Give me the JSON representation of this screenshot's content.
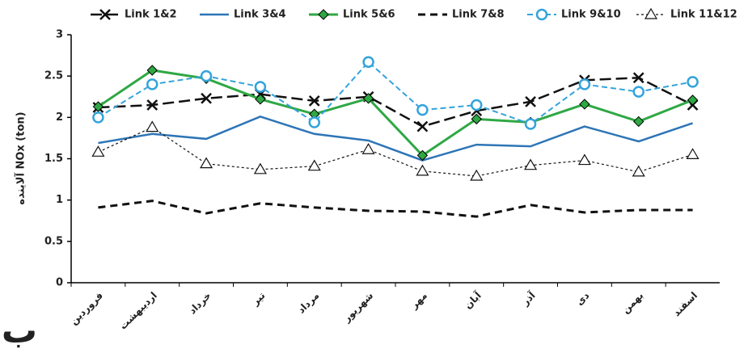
{
  "chart_data": {
    "type": "line",
    "y_label": "آلاینده NOx (ton)",
    "panel_label": "ب",
    "categories": [
      "فروردین",
      "اردیبهشت",
      "خرداد",
      "تیر",
      "مرداد",
      "شهریور",
      "مهر",
      "آبان",
      "آذر",
      "دی",
      "بهمن",
      "اسفند"
    ],
    "ylim": [
      0,
      3
    ],
    "yticks": [
      0,
      0.5,
      1,
      1.5,
      2,
      2.5,
      3
    ],
    "grid": false,
    "series": [
      {
        "name": "Link 1&2",
        "color": "#111111",
        "dash": "14,6",
        "width": 2.5,
        "marker": "x",
        "values": [
          2.12,
          2.15,
          2.23,
          2.28,
          2.2,
          2.25,
          1.89,
          2.08,
          2.19,
          2.45,
          2.48,
          2.15
        ]
      },
      {
        "name": "Link 3&4",
        "color": "#2e75b6",
        "dash": "none",
        "width": 2.5,
        "marker": "none",
        "values": [
          1.69,
          1.8,
          1.74,
          2.01,
          1.8,
          1.72,
          1.48,
          1.67,
          1.65,
          1.89,
          1.71,
          1.93
        ]
      },
      {
        "name": "Link 5&6",
        "color": "#2fa844",
        "dash": "none",
        "width": 3,
        "marker": "diamond",
        "values": [
          2.13,
          2.57,
          2.47,
          2.22,
          2.04,
          2.23,
          1.54,
          1.98,
          1.94,
          2.16,
          1.95,
          2.21
        ]
      },
      {
        "name": "Link 7&8",
        "color": "#111111",
        "dash": "9,6",
        "width": 3,
        "marker": "none",
        "values": [
          0.91,
          0.99,
          0.84,
          0.96,
          0.91,
          0.87,
          0.86,
          0.8,
          0.94,
          0.85,
          0.88,
          0.88
        ]
      },
      {
        "name": "Link 9&10",
        "color": "#33a3dc",
        "dash": "7,4",
        "width": 2,
        "marker": "circle",
        "values": [
          2.0,
          2.4,
          2.5,
          2.37,
          1.94,
          2.67,
          2.09,
          2.15,
          1.92,
          2.4,
          2.31,
          2.43
        ]
      },
      {
        "name": "Link 11&12",
        "color": "#111111",
        "dash": "3,3",
        "width": 1.2,
        "marker": "triangle",
        "values": [
          1.58,
          1.88,
          1.44,
          1.37,
          1.41,
          1.61,
          1.35,
          1.29,
          1.42,
          1.48,
          1.34,
          1.55
        ]
      }
    ]
  }
}
